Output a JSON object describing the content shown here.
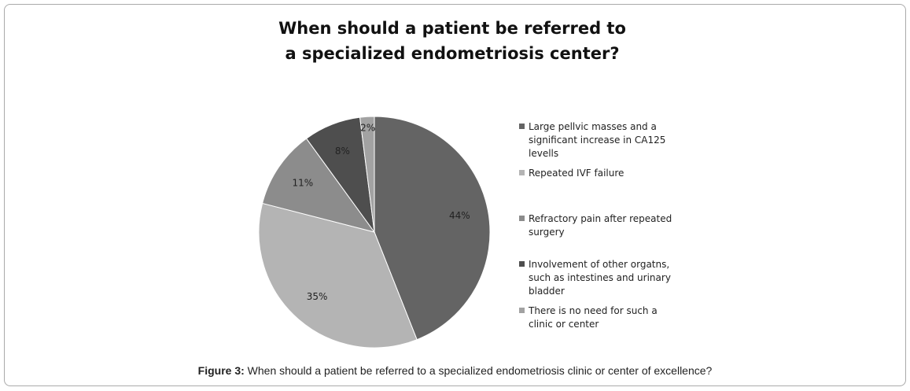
{
  "chart_data": {
    "type": "pie",
    "title": "When should a patient be referred to a specialized endometriosis center?",
    "categories": [
      "Large pellvic masses and a significant increase in CA125 levells",
      "Repeated IVF failure",
      "Refractory pain after repeated surgery",
      "Involvement of other orgatns, such as intestines and urinary bladder",
      "There is no need for such a clinic or center"
    ],
    "values": [
      44,
      35,
      11,
      8,
      2
    ],
    "value_labels": [
      "44%",
      "35%",
      "11%",
      "8%",
      "2%"
    ],
    "colors": [
      "#646464",
      "#b4b4b4",
      "#8c8c8c",
      "#4e4e4e",
      "#a2a2a2"
    ],
    "legend": "right"
  },
  "caption": {
    "label": "Figure 3:",
    "text": "When should a patient be referred to a specialized endometriosis clinic or center of excellence?"
  }
}
